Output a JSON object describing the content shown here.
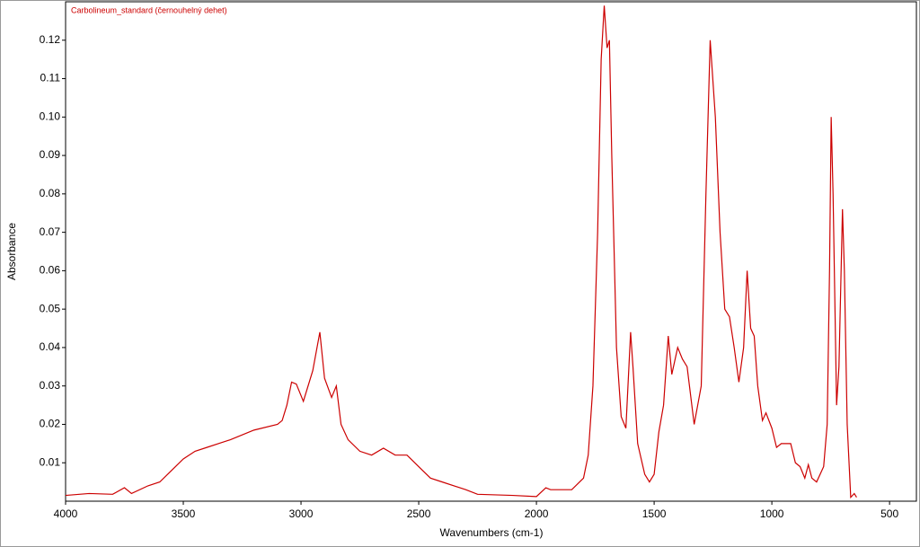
{
  "chart_data": {
    "type": "line",
    "xlabel": "Wavenumbers (cm-1)",
    "ylabel": "Absorbance",
    "xlim": [
      4000,
      386
    ],
    "ylim": [
      0,
      0.13
    ],
    "xticks": [
      4000,
      3500,
      3000,
      2500,
      2000,
      1500,
      1000,
      500
    ],
    "yticks": [
      0.01,
      0.02,
      0.03,
      0.04,
      0.05,
      0.06,
      0.07,
      0.08,
      0.09,
      {
        "value": 0.1,
        "label": "0.10"
      },
      0.11,
      0.12
    ],
    "x": [
      4000,
      3900,
      3800,
      3750,
      3720,
      3650,
      3600,
      3550,
      3500,
      3450,
      3400,
      3350,
      3300,
      3200,
      3100,
      3080,
      3060,
      3040,
      3020,
      2990,
      2950,
      2920,
      2900,
      2870,
      2850,
      2830,
      2800,
      2750,
      2700,
      2650,
      2600,
      2550,
      2500,
      2450,
      2400,
      2300,
      2250,
      2100,
      2000,
      1960,
      1940,
      1850,
      1800,
      1780,
      1760,
      1740,
      1725,
      1712,
      1700,
      1690,
      1680,
      1660,
      1640,
      1620,
      1600,
      1590,
      1570,
      1540,
      1520,
      1500,
      1480,
      1460,
      1440,
      1425,
      1400,
      1380,
      1360,
      1330,
      1300,
      1280,
      1262,
      1240,
      1220,
      1200,
      1180,
      1160,
      1140,
      1120,
      1105,
      1090,
      1075,
      1060,
      1040,
      1025,
      1000,
      980,
      960,
      920,
      900,
      880,
      860,
      845,
      830,
      810,
      780,
      765,
      755,
      748,
      740,
      725,
      715,
      700,
      692,
      680,
      665,
      650,
      640
    ],
    "series": [
      {
        "name": "Carbolineum_standard (černouhelný dehet)",
        "color": "#cc0000",
        "values": [
          0.0015,
          0.002,
          0.0018,
          0.0035,
          0.002,
          0.004,
          0.005,
          0.008,
          0.011,
          0.013,
          0.014,
          0.015,
          0.016,
          0.0185,
          0.02,
          0.021,
          0.025,
          0.031,
          0.0305,
          0.026,
          0.034,
          0.044,
          0.032,
          0.027,
          0.03,
          0.02,
          0.016,
          0.013,
          0.012,
          0.0138,
          0.012,
          0.012,
          0.009,
          0.006,
          0.005,
          0.003,
          0.0018,
          0.0015,
          0.0012,
          0.0035,
          0.003,
          0.003,
          0.006,
          0.012,
          0.03,
          0.07,
          0.115,
          0.129,
          0.118,
          0.12,
          0.09,
          0.04,
          0.022,
          0.019,
          0.044,
          0.035,
          0.015,
          0.007,
          0.005,
          0.007,
          0.018,
          0.025,
          0.043,
          0.033,
          0.04,
          0.037,
          0.035,
          0.02,
          0.03,
          0.08,
          0.12,
          0.1,
          0.07,
          0.05,
          0.048,
          0.04,
          0.031,
          0.04,
          0.06,
          0.045,
          0.043,
          0.03,
          0.021,
          0.023,
          0.019,
          0.014,
          0.015,
          0.015,
          0.01,
          0.009,
          0.006,
          0.0095,
          0.006,
          0.005,
          0.009,
          0.02,
          0.06,
          0.1,
          0.08,
          0.025,
          0.035,
          0.076,
          0.06,
          0.02,
          0.001,
          0.002,
          0.001
        ]
      }
    ]
  }
}
